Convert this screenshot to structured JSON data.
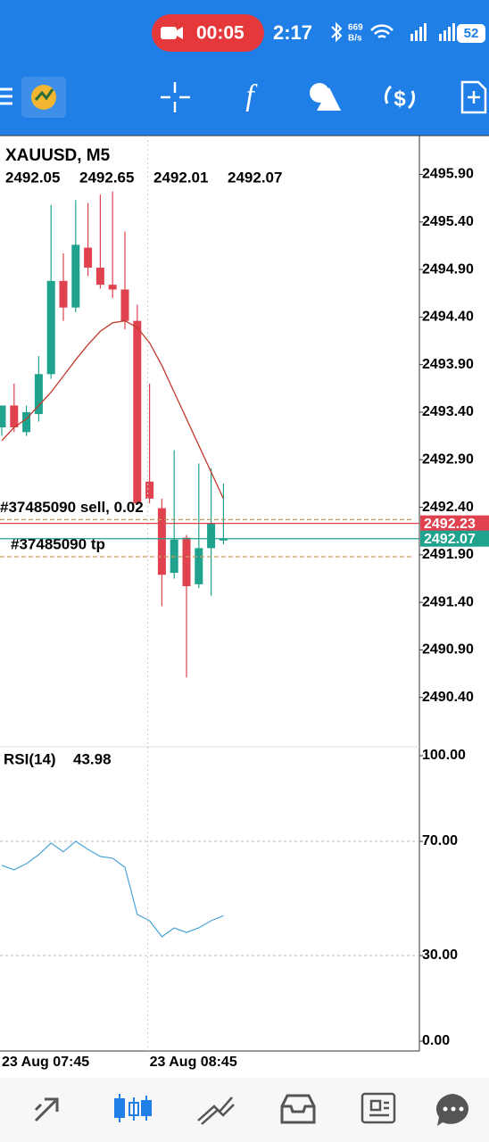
{
  "status_bar": {
    "record_timer": "00:05",
    "time": "2:17",
    "net_speed_value": "669",
    "net_speed_unit": "B/s",
    "battery": "52"
  },
  "chart_data": [
    {
      "type": "candlestick",
      "title": "XAUUSD, M5",
      "categories": [
        "23 Aug 07:45",
        null,
        null,
        null,
        null,
        null,
        null,
        null,
        null,
        null,
        null,
        null,
        "23 Aug 08:45",
        null,
        null,
        null,
        null,
        null,
        null
      ],
      "open": [
        2493.24,
        2493.47,
        2493.19,
        2493.38,
        2493.8,
        2494.78,
        2494.5,
        2495.13,
        2494.92,
        2494.74,
        2494.69,
        2494.36,
        2492.67,
        2492.39,
        2491.71,
        2492.08,
        2491.59,
        2491.97,
        2492.05
      ],
      "high": [
        2493.47,
        2493.7,
        2493.47,
        2493.99,
        2495.58,
        2495.07,
        2495.63,
        2495.6,
        2495.69,
        2495.72,
        2495.3,
        2494.53,
        2493.7,
        2492.49,
        2493.0,
        2492.11,
        2492.86,
        2492.81,
        2492.65
      ],
      "low": [
        2493.15,
        2493.19,
        2493.15,
        2493.3,
        2493.75,
        2494.36,
        2494.45,
        2494.83,
        2494.7,
        2494.6,
        2494.27,
        2492.44,
        2492.44,
        2491.36,
        2491.65,
        2490.61,
        2491.55,
        2491.47,
        2492.01
      ],
      "close": [
        2493.47,
        2493.24,
        2493.4,
        2493.8,
        2494.78,
        2494.5,
        2495.16,
        2494.92,
        2494.74,
        2494.69,
        2494.36,
        2492.44,
        2492.49,
        2491.69,
        2492.06,
        2491.57,
        2491.97,
        2492.23,
        2492.07
      ],
      "up_color": "#1fa38e",
      "down_color": "#e0434f",
      "ma": {
        "color": "#c0392b",
        "values": [
          2493.1,
          2493.24,
          2493.33,
          2493.47,
          2493.61,
          2493.78,
          2493.95,
          2494.11,
          2494.25,
          2494.34,
          2494.36,
          2494.29,
          2494.13,
          2493.89,
          2493.61,
          2493.33,
          2493.05,
          2492.77,
          2492.49
        ]
      },
      "ylim": [
        2489.9,
        2496.28
      ],
      "yticks": [
        {
          "value": 2495.9,
          "label": "2495.90"
        },
        {
          "value": 2495.4,
          "label": "2495.40"
        },
        {
          "value": 2494.9,
          "label": "2494.90"
        },
        {
          "value": 2494.4,
          "label": "2494.40"
        },
        {
          "value": 2493.9,
          "label": "2493.90"
        },
        {
          "value": 2493.4,
          "label": "2493.40"
        },
        {
          "value": 2492.9,
          "label": "2492.90"
        },
        {
          "value": 2492.4,
          "label": "2492.40"
        },
        {
          "value": 2491.9,
          "label": "2491.90"
        },
        {
          "value": 2491.4,
          "label": "2491.40"
        },
        {
          "value": 2490.9,
          "label": "2490.90"
        },
        {
          "value": 2490.4,
          "label": "2490.40"
        }
      ],
      "ask": 2492.23,
      "bid": 2492.07,
      "ask_color": "#e0434f",
      "bid_color": "#1fa38e",
      "orders": [
        {
          "label": "#37485090 sell, 0.02",
          "price": 2492.27
        },
        {
          "label": "#37485090 tp",
          "price": 2491.88
        }
      ],
      "order_color": "#c89a5a"
    },
    {
      "type": "line",
      "title": "RSI(14)",
      "series": [
        {
          "color": "#4aa3d8",
          "values": [
            61.6,
            60.0,
            62.2,
            65.3,
            69.4,
            66.3,
            70.0,
            67.2,
            64.7,
            64.1,
            60.9,
            44.4,
            42.2,
            36.6,
            39.7,
            38.1,
            39.7,
            42.2,
            43.98
          ]
        }
      ],
      "ylim": [
        0,
        100
      ],
      "yticks": [
        {
          "value": 100,
          "label": "100.00"
        },
        {
          "value": 70,
          "label": "70.00"
        },
        {
          "value": 30,
          "label": "30.00"
        },
        {
          "value": 0,
          "label": "0.00"
        }
      ]
    }
  ]
}
